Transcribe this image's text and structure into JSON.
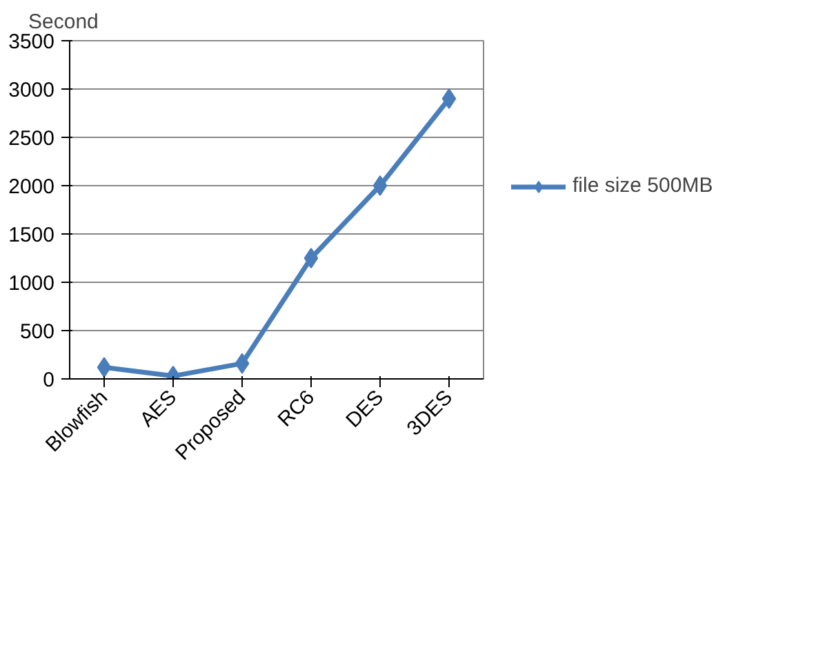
{
  "chart_data": {
    "type": "line",
    "ylabel": "Second",
    "categories": [
      "Blowfish",
      "AES",
      "Proposed",
      "RC6",
      "DES",
      "3DES"
    ],
    "series": [
      {
        "name": "file size 500MB",
        "color": "#4a7ebb",
        "values": [
          120,
          30,
          160,
          1250,
          2000,
          2900
        ]
      }
    ],
    "ylim": [
      0,
      3500
    ],
    "yticks": [
      0,
      500,
      1000,
      1500,
      2000,
      2500,
      3000,
      3500
    ],
    "grid": "y",
    "legend": "right",
    "marker": "diamond",
    "line_style": "solid"
  }
}
